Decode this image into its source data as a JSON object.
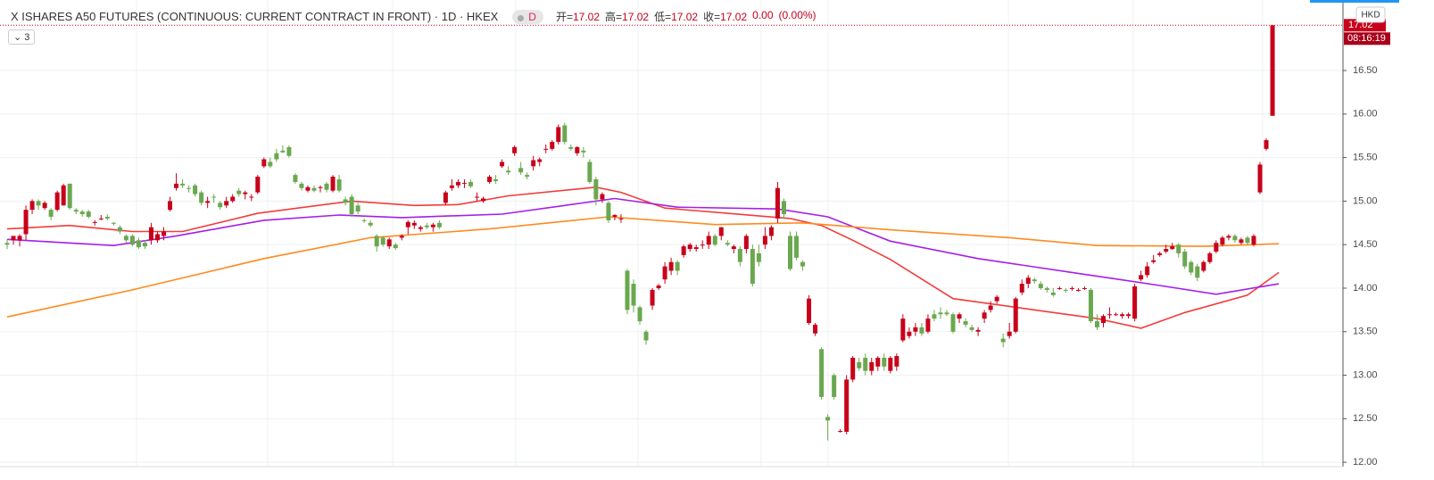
{
  "chart_data": {
    "type": "candlestick",
    "title": "X ISHARES A50 FUTURES (CONTINUOUS: CURRENT CONTRACT IN FRONT) · 1D · HKEX",
    "badge": "D",
    "collapse_count": "3",
    "currency": "HKD",
    "legend": [
      {
        "label": "开=",
        "value": 17.02
      },
      {
        "label": "高=",
        "value": 17.02
      },
      {
        "label": "低=",
        "value": 17.02
      },
      {
        "label": "收=",
        "value": 17.02
      }
    ],
    "change": {
      "value": 0,
      "label": "0.00"
    },
    "change_pct": {
      "value": 0,
      "label": "(0.00%)"
    },
    "last_price": 17.02,
    "countdown": "08:16:19",
    "up_color": "#c8001a",
    "down_color": "#6aa84f",
    "grid": true,
    "ylim": [
      11.95,
      17.31
    ],
    "yticks": [
      {
        "value": 12,
        "label": "12.00"
      },
      {
        "value": 12.5,
        "label": "12.50"
      },
      {
        "value": 13,
        "label": "13.00"
      },
      {
        "value": 13.5,
        "label": "13.50"
      },
      {
        "value": 14,
        "label": "14.00"
      },
      {
        "value": 14.5,
        "label": "14.50"
      },
      {
        "value": 15,
        "label": "15.00"
      },
      {
        "value": 15.5,
        "label": "15.50"
      },
      {
        "value": 16,
        "label": "16.00"
      },
      {
        "value": 16.5,
        "label": "16.50"
      }
    ],
    "candles": [
      [
        14.52,
        14.56,
        14.45,
        14.5
      ],
      [
        14.55,
        14.6,
        14.5,
        14.6
      ],
      [
        14.55,
        14.62,
        14.48,
        14.6
      ],
      [
        14.62,
        14.95,
        14.55,
        14.9
      ],
      [
        14.9,
        15.02,
        14.85,
        15.0
      ],
      [
        15.0,
        15.02,
        14.9,
        14.95
      ],
      [
        14.92,
        15.0,
        14.9,
        14.98
      ],
      [
        14.9,
        14.92,
        14.78,
        14.82
      ],
      [
        14.9,
        15.12,
        14.88,
        15.1
      ],
      [
        14.95,
        15.2,
        14.95,
        15.18
      ],
      [
        15.2,
        15.2,
        14.9,
        14.92
      ],
      [
        14.9,
        14.92,
        14.85,
        14.88
      ],
      [
        14.88,
        14.9,
        14.82,
        14.85
      ],
      [
        14.88,
        14.9,
        14.8,
        14.82
      ],
      [
        14.75,
        14.78,
        14.72,
        14.76
      ],
      [
        14.8,
        14.84,
        14.78,
        14.8
      ],
      [
        14.82,
        14.85,
        14.78,
        14.8
      ],
      [
        14.75,
        14.76,
        14.72,
        14.74
      ],
      [
        14.7,
        14.72,
        14.62,
        14.65
      ],
      [
        14.6,
        14.62,
        14.52,
        14.55
      ],
      [
        14.6,
        14.62,
        14.48,
        14.5
      ],
      [
        14.55,
        14.58,
        14.45,
        14.47
      ],
      [
        14.52,
        14.55,
        14.45,
        14.48
      ],
      [
        14.55,
        14.75,
        14.5,
        14.7
      ],
      [
        14.55,
        14.65,
        14.52,
        14.62
      ],
      [
        14.6,
        14.7,
        14.55,
        14.65
      ],
      [
        14.9,
        15.05,
        14.88,
        15.0
      ],
      [
        15.15,
        15.32,
        15.12,
        15.2
      ],
      [
        15.2,
        15.25,
        15.15,
        15.18
      ],
      [
        15.15,
        15.18,
        15.1,
        15.14
      ],
      [
        15.18,
        15.2,
        15.05,
        15.08
      ],
      [
        15.1,
        15.12,
        14.95,
        14.98
      ],
      [
        14.98,
        15.05,
        14.92,
        15.0
      ],
      [
        15.05,
        15.08,
        14.98,
        15.04
      ],
      [
        14.98,
        15.0,
        14.9,
        14.93
      ],
      [
        14.95,
        15.05,
        14.92,
        15.0
      ],
      [
        15.0,
        15.08,
        14.98,
        15.05
      ],
      [
        15.12,
        15.15,
        15.05,
        15.08
      ],
      [
        15.08,
        15.12,
        15.02,
        15.1
      ],
      [
        15.05,
        15.08,
        15.0,
        15.05
      ],
      [
        15.1,
        15.3,
        15.08,
        15.28
      ],
      [
        15.4,
        15.5,
        15.38,
        15.48
      ],
      [
        15.45,
        15.5,
        15.38,
        15.4
      ],
      [
        15.55,
        15.6,
        15.45,
        15.48
      ],
      [
        15.58,
        15.64,
        15.55,
        15.56
      ],
      [
        15.62,
        15.64,
        15.5,
        15.52
      ],
      [
        15.3,
        15.32,
        15.2,
        15.22
      ],
      [
        15.2,
        15.22,
        15.12,
        15.15
      ],
      [
        15.12,
        15.18,
        15.1,
        15.16
      ],
      [
        15.15,
        15.18,
        15.1,
        15.12
      ],
      [
        15.15,
        15.18,
        15.1,
        15.16
      ],
      [
        15.2,
        15.22,
        15.1,
        15.13
      ],
      [
        15.12,
        15.3,
        15.1,
        15.28
      ],
      [
        15.25,
        15.3,
        15.1,
        15.12
      ],
      [
        15.02,
        15.05,
        14.95,
        14.98
      ],
      [
        15.05,
        15.08,
        14.82,
        14.85
      ],
      [
        14.95,
        14.98,
        14.85,
        14.88
      ],
      [
        14.78,
        14.8,
        14.75,
        14.77
      ],
      [
        14.75,
        14.78,
        14.7,
        14.72
      ],
      [
        14.6,
        14.62,
        14.42,
        14.48
      ],
      [
        14.58,
        14.6,
        14.48,
        14.5
      ],
      [
        14.48,
        14.58,
        14.45,
        14.56
      ],
      [
        14.5,
        14.52,
        14.44,
        14.46
      ],
      [
        14.58,
        14.62,
        14.55,
        14.6
      ],
      [
        14.7,
        14.78,
        14.62,
        14.76
      ],
      [
        14.72,
        14.78,
        14.68,
        14.75
      ],
      [
        14.68,
        14.72,
        14.65,
        14.7
      ],
      [
        14.72,
        14.75,
        14.68,
        14.7
      ],
      [
        14.7,
        14.75,
        14.65,
        14.73
      ],
      [
        14.75,
        14.78,
        14.68,
        14.7
      ],
      [
        14.98,
        15.12,
        14.95,
        15.1
      ],
      [
        15.15,
        15.25,
        15.12,
        15.18
      ],
      [
        15.18,
        15.25,
        15.15,
        15.22
      ],
      [
        15.2,
        15.25,
        15.15,
        15.21
      ],
      [
        15.22,
        15.25,
        15.15,
        15.17
      ],
      [
        15.05,
        15.1,
        15.0,
        15.05
      ],
      [
        15.0,
        15.05,
        14.98,
        15.03
      ],
      [
        15.22,
        15.3,
        15.2,
        15.28
      ],
      [
        15.25,
        15.3,
        15.2,
        15.23
      ],
      [
        15.4,
        15.48,
        15.38,
        15.45
      ],
      [
        15.35,
        15.4,
        15.3,
        15.33
      ],
      [
        15.55,
        15.64,
        15.52,
        15.62
      ],
      [
        15.38,
        15.45,
        15.3,
        15.33
      ],
      [
        15.3,
        15.33,
        15.25,
        15.28
      ],
      [
        15.4,
        15.52,
        15.35,
        15.47
      ],
      [
        15.45,
        15.5,
        15.4,
        15.48
      ],
      [
        15.6,
        15.65,
        15.55,
        15.6
      ],
      [
        15.6,
        15.7,
        15.58,
        15.68
      ],
      [
        15.68,
        15.88,
        15.65,
        15.85
      ],
      [
        15.87,
        15.9,
        15.65,
        15.68
      ],
      [
        15.62,
        15.65,
        15.58,
        15.6
      ],
      [
        15.55,
        15.63,
        15.52,
        15.62
      ],
      [
        15.58,
        15.62,
        15.5,
        15.56
      ],
      [
        15.45,
        15.48,
        15.2,
        15.22
      ],
      [
        15.25,
        15.28,
        14.95,
        15.02
      ],
      [
        15.02,
        15.1,
        14.98,
        15.08
      ],
      [
        14.98,
        15.0,
        14.75,
        14.78
      ],
      [
        14.82,
        14.85,
        14.78,
        14.84
      ],
      [
        14.8,
        14.85,
        14.75,
        14.8
      ],
      [
        14.2,
        14.22,
        13.7,
        13.75
      ],
      [
        14.05,
        14.1,
        13.72,
        13.8
      ],
      [
        13.78,
        13.8,
        13.58,
        13.62
      ],
      [
        13.5,
        13.52,
        13.35,
        13.4
      ],
      [
        13.8,
        14.0,
        13.75,
        13.98
      ],
      [
        14.0,
        14.05,
        13.98,
        14.03
      ],
      [
        14.1,
        14.3,
        14.05,
        14.25
      ],
      [
        14.2,
        14.35,
        14.15,
        14.3
      ],
      [
        14.3,
        14.32,
        14.15,
        14.2
      ],
      [
        14.38,
        14.5,
        14.35,
        14.48
      ],
      [
        14.45,
        14.52,
        14.42,
        14.5
      ],
      [
        14.45,
        14.5,
        14.42,
        14.47
      ],
      [
        14.5,
        14.55,
        14.45,
        14.5
      ],
      [
        14.5,
        14.65,
        14.45,
        14.6
      ],
      [
        14.6,
        14.62,
        14.48,
        14.5
      ],
      [
        14.6,
        14.7,
        14.55,
        14.7
      ],
      [
        14.52,
        14.55,
        14.48,
        14.5
      ],
      [
        14.45,
        14.5,
        14.4,
        14.48
      ],
      [
        14.45,
        14.48,
        14.25,
        14.3
      ],
      [
        14.45,
        14.62,
        14.4,
        14.6
      ],
      [
        14.45,
        14.5,
        14.02,
        14.05
      ],
      [
        14.4,
        14.5,
        14.25,
        14.3
      ],
      [
        14.5,
        14.7,
        14.45,
        14.6
      ],
      [
        14.6,
        14.72,
        14.55,
        14.7
      ],
      [
        14.8,
        15.22,
        14.75,
        15.15
      ],
      [
        15.0,
        15.03,
        14.8,
        14.85
      ],
      [
        14.6,
        14.65,
        14.2,
        14.22
      ],
      [
        14.6,
        14.65,
        14.32,
        14.35
      ],
      [
        14.3,
        14.32,
        14.2,
        14.25
      ],
      [
        13.6,
        13.92,
        13.58,
        13.88
      ],
      [
        13.48,
        13.6,
        13.45,
        13.58
      ],
      [
        13.3,
        13.32,
        12.72,
        12.75
      ],
      [
        12.52,
        12.55,
        12.25,
        12.48
      ],
      [
        13.0,
        13.02,
        12.72,
        12.75
      ],
      [
        12.35,
        12.38,
        12.34,
        12.36
      ],
      [
        12.35,
        13.0,
        12.32,
        12.95
      ],
      [
        12.95,
        13.22,
        12.92,
        13.2
      ],
      [
        13.15,
        13.2,
        13.05,
        13.08
      ],
      [
        13.2,
        13.25,
        13.0,
        13.05
      ],
      [
        13.05,
        13.2,
        13.0,
        13.15
      ],
      [
        13.1,
        13.22,
        13.05,
        13.2
      ],
      [
        13.2,
        13.25,
        13.05,
        13.1
      ],
      [
        13.05,
        13.22,
        13.02,
        13.2
      ],
      [
        13.1,
        13.25,
        13.05,
        13.22
      ],
      [
        13.4,
        13.7,
        13.38,
        13.65
      ],
      [
        13.45,
        13.55,
        13.42,
        13.5
      ],
      [
        13.5,
        13.6,
        13.45,
        13.55
      ],
      [
        13.55,
        13.6,
        13.45,
        13.48
      ],
      [
        13.5,
        13.7,
        13.48,
        13.65
      ],
      [
        13.7,
        13.75,
        13.62,
        13.65
      ],
      [
        13.72,
        13.78,
        13.65,
        13.7
      ],
      [
        13.72,
        13.75,
        13.68,
        13.7
      ],
      [
        13.7,
        13.72,
        13.48,
        13.5
      ],
      [
        13.65,
        13.72,
        13.6,
        13.7
      ],
      [
        13.62,
        13.65,
        13.55,
        13.58
      ],
      [
        13.55,
        13.58,
        13.5,
        13.52
      ],
      [
        13.5,
        13.55,
        13.45,
        13.52
      ],
      [
        13.65,
        13.75,
        13.6,
        13.72
      ],
      [
        13.75,
        13.85,
        13.72,
        13.8
      ],
      [
        13.85,
        13.92,
        13.82,
        13.9
      ],
      [
        13.42,
        13.48,
        13.32,
        13.38
      ],
      [
        13.45,
        13.6,
        13.42,
        13.5
      ],
      [
        13.5,
        13.9,
        13.48,
        13.88
      ],
      [
        13.95,
        14.1,
        13.92,
        14.05
      ],
      [
        14.05,
        14.15,
        14.0,
        14.12
      ],
      [
        14.1,
        14.12,
        14.05,
        14.08
      ],
      [
        14.05,
        14.08,
        13.98,
        14.0
      ],
      [
        14.0,
        14.02,
        13.95,
        13.98
      ],
      [
        13.95,
        14.0,
        13.9,
        13.92
      ],
      [
        14.0,
        14.02,
        13.98,
        14.0
      ],
      [
        13.98,
        14.0,
        13.95,
        13.97
      ],
      [
        14.0,
        14.02,
        13.97,
        14.0
      ],
      [
        13.98,
        14.0,
        13.96,
        13.98
      ],
      [
        14.0,
        14.02,
        13.98,
        14.0
      ],
      [
        13.98,
        14.0,
        13.6,
        13.62
      ],
      [
        13.62,
        13.7,
        13.52,
        13.55
      ],
      [
        13.6,
        13.7,
        13.55,
        13.68
      ],
      [
        13.7,
        13.78,
        13.65,
        13.7
      ],
      [
        13.7,
        13.72,
        13.68,
        13.7
      ],
      [
        13.68,
        13.72,
        13.65,
        13.7
      ],
      [
        13.68,
        13.72,
        13.65,
        13.7
      ],
      [
        13.65,
        14.05,
        13.62,
        14.02
      ],
      [
        14.1,
        14.2,
        14.08,
        14.15
      ],
      [
        14.15,
        14.3,
        14.12,
        14.25
      ],
      [
        14.3,
        14.38,
        14.28,
        14.32
      ],
      [
        14.38,
        14.42,
        14.36,
        14.4
      ],
      [
        14.42,
        14.5,
        14.4,
        14.45
      ],
      [
        14.45,
        14.52,
        14.44,
        14.48
      ],
      [
        14.5,
        14.52,
        14.35,
        14.4
      ],
      [
        14.42,
        14.45,
        14.22,
        14.25
      ],
      [
        14.3,
        14.32,
        14.15,
        14.18
      ],
      [
        14.25,
        14.28,
        14.08,
        14.12
      ],
      [
        14.2,
        14.32,
        14.18,
        14.3
      ],
      [
        14.3,
        14.42,
        14.28,
        14.4
      ],
      [
        14.42,
        14.55,
        14.4,
        14.52
      ],
      [
        14.5,
        14.6,
        14.48,
        14.58
      ],
      [
        14.58,
        14.62,
        14.55,
        14.6
      ],
      [
        14.6,
        14.62,
        14.52,
        14.55
      ],
      [
        14.52,
        14.58,
        14.5,
        14.56
      ],
      [
        14.58,
        14.6,
        14.5,
        14.52
      ],
      [
        14.5,
        14.62,
        14.48,
        14.6
      ],
      [
        15.1,
        15.45,
        15.08,
        15.42
      ],
      [
        15.6,
        15.72,
        15.58,
        15.7
      ],
      [
        15.98,
        17.02,
        15.98,
        17.02
      ]
    ],
    "lines": [
      {
        "color": "#f23c3c",
        "x": [
          0,
          10,
          20,
          28,
          40,
          55,
          65,
          72,
          80,
          94,
          98,
          105,
          115,
          125,
          130,
          135,
          141,
          151,
          162,
          174,
          181,
          188,
          198,
          203
        ],
        "values": [
          14.68,
          14.72,
          14.65,
          14.65,
          14.86,
          15.0,
          14.95,
          14.96,
          15.06,
          15.16,
          15.1,
          14.92,
          14.86,
          14.8,
          14.72,
          14.55,
          14.33,
          13.88,
          13.77,
          13.65,
          13.54,
          13.72,
          13.92,
          14.18
        ]
      },
      {
        "color": "#a61ee8",
        "x": [
          0,
          17,
          27,
          41,
          53,
          63,
          79,
          89,
          97,
          107,
          123,
          131,
          141,
          155,
          170,
          184,
          193,
          203
        ],
        "values": [
          14.56,
          14.49,
          14.6,
          14.78,
          14.84,
          14.81,
          14.85,
          14.95,
          15.03,
          14.93,
          14.91,
          14.82,
          14.54,
          14.34,
          14.18,
          14.03,
          13.93,
          14.05
        ]
      },
      {
        "color": "#ff8a1e",
        "x": [
          0,
          20,
          41,
          58,
          77,
          96,
          113,
          127,
          141,
          160,
          174,
          191,
          203
        ],
        "values": [
          13.67,
          13.98,
          14.34,
          14.58,
          14.68,
          14.82,
          14.73,
          14.75,
          14.67,
          14.58,
          14.49,
          14.48,
          14.51
        ]
      }
    ]
  }
}
